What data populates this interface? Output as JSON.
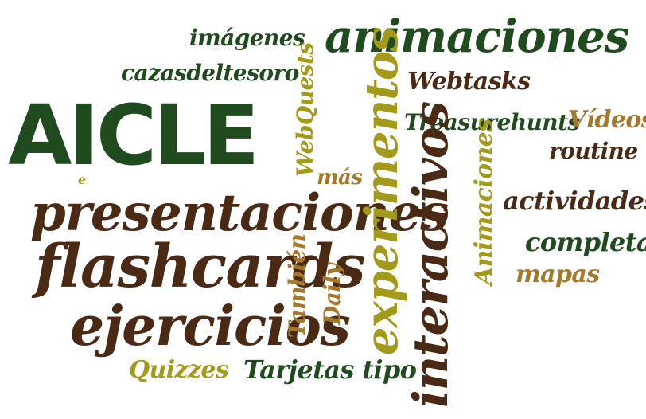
{
  "words": {
    "aicle": "AICLE",
    "animaciones": "animaciones",
    "imagenes": "imágenes",
    "cazasdeltesoro": "cazasdeltesoro",
    "webquests": "WebQuests",
    "webtasks": "Webtasks",
    "treasurehunts": "Treasurehunts",
    "videos": "Vídeos",
    "routine": "routine",
    "experimentos": "experimentos",
    "interactivos": "interactivos",
    "animaciones_v": "Animaciones",
    "e": "e",
    "mas": "más",
    "presentaciones": "presentaciones",
    "actividades": "actividades",
    "completas": "completas",
    "flashcards": "flashcards",
    "tambien": "También",
    "daily": "Daily",
    "mapas": "mapas",
    "ejercicios": "ejercicios",
    "quizzes": "Quizzes",
    "tarjetas_tipo": "Tarjetas tipo"
  },
  "colors": {
    "green": "#1f4b1f",
    "brown": "#4a2a14",
    "olive": "#a39a1c",
    "tan": "#a6782c"
  }
}
